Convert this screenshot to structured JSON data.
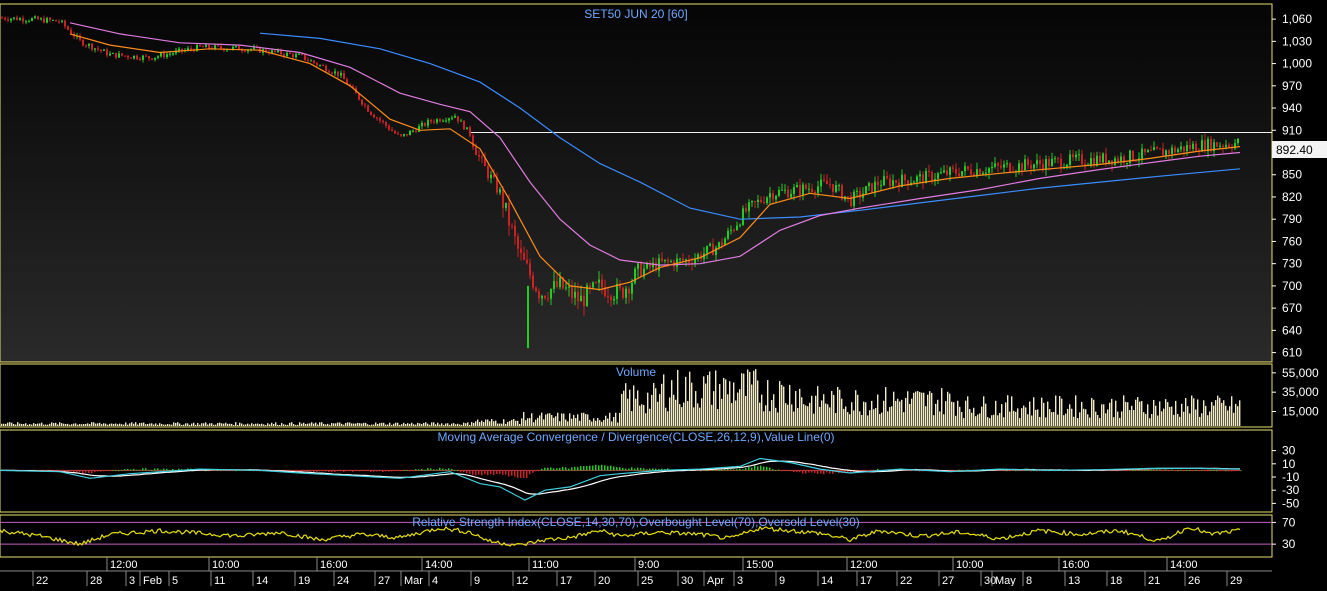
{
  "colors": {
    "background": "#000000",
    "frame": "#e8e070",
    "title_text": "#6fa8ff",
    "axis_text": "#ffffff",
    "up_candle": "#22cc22",
    "down_candle": "#cc2222",
    "ma_fast": "#ff8c1a",
    "ma_mid": "#e07be0",
    "ma_slow": "#3a8cff",
    "volume_bar": "#f2ecc6",
    "macd_line": "#3fd1e0",
    "macd_signal": "#ffffff",
    "rsi_line": "#e8e000",
    "rsi_level": "#c060c0",
    "last_price_line": "#f0f0f0"
  },
  "chart_data": [
    {
      "type": "candlestick",
      "title": "SET50 JUN 20   [60]",
      "last_price_label": "892.40",
      "y_ticks": [
        "1,060",
        "1,030",
        "1,000",
        "970",
        "940",
        "910",
        "880",
        "850",
        "820",
        "790",
        "760",
        "730",
        "700",
        "670",
        "640",
        "610"
      ],
      "ylim": [
        600,
        1075
      ],
      "series": [
        {
          "name": "",
          "close_path_points": [
            [
              0,
              1062
            ],
            [
              30,
              1060
            ],
            [
              60,
              1057
            ],
            [
              80,
              1030
            ],
            [
              110,
              1012
            ],
            [
              150,
              1008
            ],
            [
              200,
              1022
            ],
            [
              250,
              1020
            ],
            [
              300,
              1010
            ],
            [
              340,
              985
            ],
            [
              370,
              935
            ],
            [
              400,
              900
            ],
            [
              430,
              922
            ],
            [
              455,
              930
            ],
            [
              470,
              905
            ],
            [
              480,
              870
            ],
            [
              500,
              825
            ],
            [
              520,
              740
            ],
            [
              540,
              690
            ],
            [
              560,
              700
            ],
            [
              580,
              680
            ],
            [
              600,
              700
            ],
            [
              620,
              690
            ],
            [
              640,
              720
            ],
            [
              660,
              730
            ],
            [
              690,
              735
            ],
            [
              720,
              755
            ],
            [
              745,
              800
            ],
            [
              770,
              825
            ],
            [
              800,
              830
            ],
            [
              830,
              838
            ],
            [
              850,
              815
            ],
            [
              880,
              840
            ],
            [
              920,
              845
            ],
            [
              960,
              855
            ],
            [
              1000,
              860
            ],
            [
              1040,
              865
            ],
            [
              1080,
              870
            ],
            [
              1120,
              872
            ],
            [
              1160,
              880
            ],
            [
              1200,
              890
            ],
            [
              1240,
              893
            ]
          ]
        },
        {
          "name": "",
          "ma_fast_points": [
            [
              70,
              1040
            ],
            [
              110,
              1025
            ],
            [
              160,
              1015
            ],
            [
              210,
              1020
            ],
            [
              260,
              1018
            ],
            [
              310,
              1000
            ],
            [
              350,
              970
            ],
            [
              390,
              925
            ],
            [
              420,
              910
            ],
            [
              450,
              912
            ],
            [
              480,
              885
            ],
            [
              510,
              815
            ],
            [
              540,
              740
            ],
            [
              570,
              700
            ],
            [
              600,
              695
            ],
            [
              630,
              705
            ],
            [
              660,
              725
            ],
            [
              700,
              738
            ],
            [
              740,
              765
            ],
            [
              770,
              810
            ],
            [
              810,
              825
            ],
            [
              850,
              818
            ],
            [
              900,
              835
            ],
            [
              950,
              845
            ],
            [
              1000,
              852
            ],
            [
              1050,
              858
            ],
            [
              1100,
              864
            ],
            [
              1150,
              872
            ],
            [
              1200,
              882
            ],
            [
              1240,
              888
            ]
          ]
        },
        {
          "name": "",
          "ma_mid_points": [
            [
              70,
              1055
            ],
            [
              120,
              1040
            ],
            [
              180,
              1028
            ],
            [
              240,
              1025
            ],
            [
              300,
              1015
            ],
            [
              350,
              995
            ],
            [
              400,
              960
            ],
            [
              440,
              945
            ],
            [
              470,
              935
            ],
            [
              500,
              900
            ],
            [
              530,
              840
            ],
            [
              560,
              790
            ],
            [
              590,
              755
            ],
            [
              620,
              735
            ],
            [
              660,
              728
            ],
            [
              700,
              730
            ],
            [
              740,
              740
            ],
            [
              780,
              775
            ],
            [
              820,
              795
            ],
            [
              860,
              805
            ],
            [
              920,
              818
            ],
            [
              980,
              830
            ],
            [
              1040,
              845
            ],
            [
              1100,
              857
            ],
            [
              1160,
              868
            ],
            [
              1200,
              875
            ],
            [
              1240,
              880
            ]
          ]
        },
        {
          "name": "",
          "ma_slow_points": [
            [
              260,
              1041
            ],
            [
              320,
              1034
            ],
            [
              380,
              1020
            ],
            [
              430,
              1000
            ],
            [
              480,
              975
            ],
            [
              520,
              940
            ],
            [
              560,
              900
            ],
            [
              600,
              865
            ],
            [
              640,
              840
            ],
            [
              690,
              805
            ],
            [
              740,
              790
            ],
            [
              800,
              793
            ],
            [
              860,
              802
            ],
            [
              920,
              812
            ],
            [
              980,
              822
            ],
            [
              1040,
              832
            ],
            [
              1100,
              840
            ],
            [
              1160,
              848
            ],
            [
              1240,
              858
            ]
          ]
        }
      ]
    },
    {
      "type": "bar",
      "title": "Volume",
      "y_ticks": [
        "55,000",
        "35,000",
        "15,000"
      ],
      "ylim": [
        0,
        60000
      ],
      "values_by_segment": [
        {
          "from": 0,
          "to": 470,
          "level": 2500
        },
        {
          "from": 470,
          "to": 520,
          "level": 5000
        },
        {
          "from": 520,
          "to": 620,
          "level": 9000
        },
        {
          "from": 620,
          "to": 660,
          "level": 28000
        },
        {
          "from": 660,
          "to": 760,
          "level": 38000
        },
        {
          "from": 760,
          "to": 800,
          "level": 34000
        },
        {
          "from": 800,
          "to": 960,
          "level": 26000
        },
        {
          "from": 960,
          "to": 1240,
          "level": 20000
        }
      ]
    },
    {
      "type": "line",
      "title": "Moving Average Convergence / Divergence(CLOSE,26,12,9),Value Line(0)",
      "y_ticks": [
        "30",
        "10",
        "-10",
        "-30",
        "-50"
      ],
      "ylim": [
        -60,
        40
      ],
      "macd_points": [
        [
          0,
          0
        ],
        [
          60,
          -2
        ],
        [
          90,
          -12
        ],
        [
          130,
          -5
        ],
        [
          200,
          2
        ],
        [
          260,
          0
        ],
        [
          300,
          -4
        ],
        [
          350,
          -8
        ],
        [
          400,
          -12
        ],
        [
          450,
          -2
        ],
        [
          480,
          -20
        ],
        [
          500,
          -25
        ],
        [
          525,
          -45
        ],
        [
          545,
          -30
        ],
        [
          570,
          -25
        ],
        [
          600,
          -8
        ],
        [
          620,
          -5
        ],
        [
          660,
          0
        ],
        [
          700,
          2
        ],
        [
          740,
          6
        ],
        [
          760,
          18
        ],
        [
          790,
          12
        ],
        [
          820,
          2
        ],
        [
          850,
          -4
        ],
        [
          900,
          2
        ],
        [
          950,
          -2
        ],
        [
          1000,
          2
        ],
        [
          1050,
          0
        ],
        [
          1100,
          1
        ],
        [
          1150,
          3
        ],
        [
          1200,
          3
        ],
        [
          1240,
          2
        ]
      ]
    },
    {
      "type": "line",
      "title": "Relative Strength Index(CLOSE,14,30,70),Overbought Level(70),Oversold Level(30)",
      "y_ticks": [
        "70",
        "30"
      ],
      "ylim": [
        10,
        80
      ],
      "levels": [
        70,
        30
      ],
      "rsi_points": [
        [
          0,
          55
        ],
        [
          40,
          45
        ],
        [
          80,
          30
        ],
        [
          110,
          48
        ],
        [
          160,
          55
        ],
        [
          200,
          50
        ],
        [
          240,
          45
        ],
        [
          280,
          52
        ],
        [
          320,
          38
        ],
        [
          360,
          48
        ],
        [
          400,
          42
        ],
        [
          440,
          60
        ],
        [
          470,
          52
        ],
        [
          490,
          35
        ],
        [
          520,
          28
        ],
        [
          545,
          38
        ],
        [
          570,
          42
        ],
        [
          600,
          55
        ],
        [
          620,
          45
        ],
        [
          660,
          52
        ],
        [
          700,
          48
        ],
        [
          730,
          40
        ],
        [
          760,
          60
        ],
        [
          790,
          55
        ],
        [
          820,
          50
        ],
        [
          850,
          38
        ],
        [
          880,
          55
        ],
        [
          920,
          45
        ],
        [
          960,
          52
        ],
        [
          1000,
          40
        ],
        [
          1040,
          55
        ],
        [
          1080,
          48
        ],
        [
          1120,
          55
        ],
        [
          1160,
          35
        ],
        [
          1190,
          62
        ],
        [
          1210,
          48
        ],
        [
          1240,
          55
        ]
      ]
    }
  ],
  "x_axis": {
    "lower_labels": [
      "22",
      "28",
      "3",
      "Feb",
      "5",
      "11",
      "14",
      "19",
      "24",
      "27",
      "Mar",
      "4",
      "9",
      "12",
      "17",
      "20",
      "25",
      "30",
      "Apr",
      "3",
      "9",
      "14",
      "17",
      "22",
      "27",
      "30",
      "May",
      "8",
      "13",
      "18",
      "21",
      "26",
      "29"
    ],
    "upper_labels": [
      "12:00",
      "10:00",
      "16:00",
      "14:00",
      "11:00",
      "9:00",
      "15:00",
      "12:00",
      "10:00",
      "16:00",
      "14:00"
    ]
  }
}
